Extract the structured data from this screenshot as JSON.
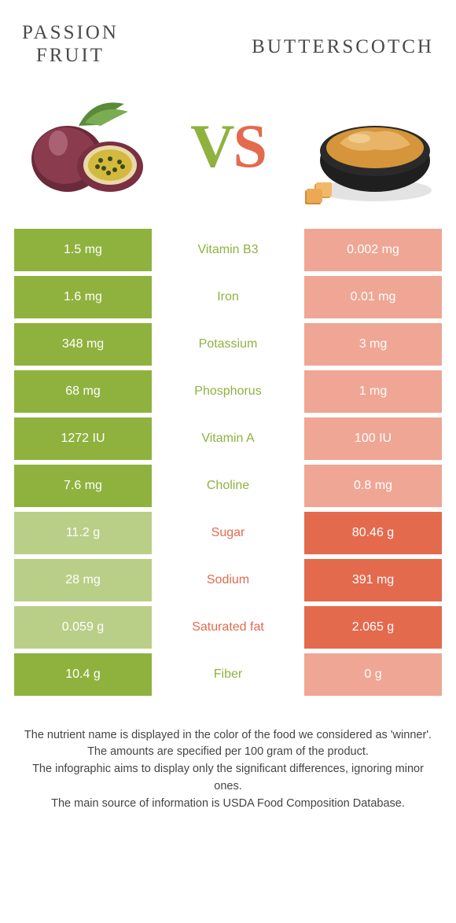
{
  "colors": {
    "left": "#8fb23f",
    "right": "#e46a4e",
    "left_dim": "#b9cf88",
    "right_dim": "#efa694",
    "text_dark": "#4a4a4a"
  },
  "header": {
    "left_line1": "PASSION",
    "left_line2": "FRUIT",
    "right": "BUTTERSCOTCH",
    "vs_v": "V",
    "vs_s": "S"
  },
  "rows": [
    {
      "nutrient": "Vitamin B3",
      "left": "1.5 mg",
      "right": "0.002 mg",
      "winner": "left"
    },
    {
      "nutrient": "Iron",
      "left": "1.6 mg",
      "right": "0.01 mg",
      "winner": "left"
    },
    {
      "nutrient": "Potassium",
      "left": "348 mg",
      "right": "3 mg",
      "winner": "left"
    },
    {
      "nutrient": "Phosphorus",
      "left": "68 mg",
      "right": "1 mg",
      "winner": "left"
    },
    {
      "nutrient": "Vitamin A",
      "left": "1272 IU",
      "right": "100 IU",
      "winner": "left"
    },
    {
      "nutrient": "Choline",
      "left": "7.6 mg",
      "right": "0.8 mg",
      "winner": "left"
    },
    {
      "nutrient": "Sugar",
      "left": "11.2 g",
      "right": "80.46 g",
      "winner": "right"
    },
    {
      "nutrient": "Sodium",
      "left": "28 mg",
      "right": "391 mg",
      "winner": "right"
    },
    {
      "nutrient": "Saturated fat",
      "left": "0.059 g",
      "right": "2.065 g",
      "winner": "right"
    },
    {
      "nutrient": "Fiber",
      "left": "10.4 g",
      "right": "0 g",
      "winner": "left"
    }
  ],
  "footer": {
    "l1": "The nutrient name is displayed in the color of the food we considered as 'winner'.",
    "l2": "The amounts are specified per 100 gram of the product.",
    "l3": "The infographic aims to display only the significant differences, ignoring minor ones.",
    "l4": "The main source of information is USDA Food Composition Database."
  }
}
